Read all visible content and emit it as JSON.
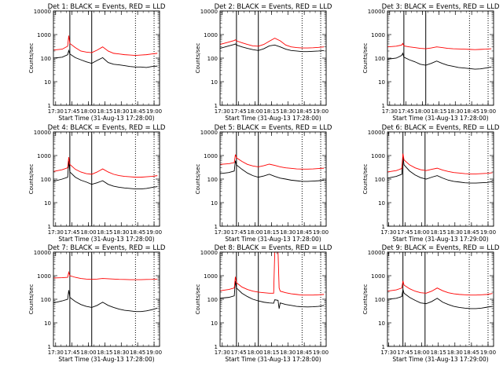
{
  "figure": {
    "background": "#ffffff",
    "event_color": "#000000",
    "lld_color": "#ff0000"
  },
  "chart_data": [
    {
      "type": "line",
      "title": "Det 1: BLACK = Events, RED = LLD",
      "xlabel": "Start Time (31-Aug-13 17:28:00)",
      "ylabel": "Counts/sec",
      "x_ticks": [
        "17:30",
        "17:45",
        "18:00",
        "18:15",
        "18:30",
        "18:45",
        "19:00"
      ],
      "y_ticks": [
        "1",
        "10",
        "100",
        "1000",
        "10000"
      ],
      "yscale": "log",
      "ylim": [
        1,
        10000
      ],
      "xlim": [
        "17:28",
        "19:05"
      ],
      "x_minutes": [
        0,
        8,
        13,
        14,
        15,
        20,
        25,
        30,
        35,
        40,
        45,
        50,
        55,
        60,
        65,
        70,
        75,
        80,
        85,
        90,
        95
      ],
      "series": [
        {
          "name": "Events",
          "color": "#000000",
          "values": [
            100,
            110,
            140,
            210,
            150,
            105,
            85,
            70,
            60,
            80,
            105,
            65,
            55,
            52,
            48,
            44,
            42,
            42,
            40,
            44,
            46
          ]
        },
        {
          "name": "LLD",
          "color": "#ff0000",
          "values": [
            220,
            240,
            320,
            900,
            420,
            280,
            200,
            180,
            170,
            220,
            300,
            200,
            160,
            150,
            140,
            135,
            130,
            135,
            140,
            150,
            160
          ]
        }
      ],
      "vertical_solid_min": [
        15,
        35
      ],
      "vertical_dotted_min": [
        75,
        92
      ]
    },
    {
      "type": "line",
      "title": "Det 2: BLACK = Events, RED = LLD",
      "xlabel": "Start Time (31-Aug-13 17:28:00)",
      "ylabel": "Counts/sec",
      "x_ticks": [
        "17:30",
        "17:45",
        "18:00",
        "18:15",
        "18:30",
        "18:45",
        "19:00"
      ],
      "y_ticks": [
        "1",
        "10",
        "100",
        "1000",
        "10000"
      ],
      "yscale": "log",
      "ylim": [
        1,
        10000
      ],
      "xlim": [
        "17:28",
        "19:05"
      ],
      "x_minutes": [
        0,
        8,
        13,
        14,
        15,
        20,
        25,
        30,
        35,
        40,
        45,
        50,
        55,
        60,
        65,
        70,
        75,
        80,
        85,
        90,
        95
      ],
      "series": [
        {
          "name": "Events",
          "color": "#000000",
          "values": [
            260,
            330,
            380,
            400,
            360,
            300,
            260,
            230,
            210,
            250,
            330,
            360,
            300,
            240,
            210,
            200,
            190,
            190,
            195,
            200,
            210
          ]
        },
        {
          "name": "LLD",
          "color": "#ff0000",
          "values": [
            380,
            480,
            560,
            600,
            540,
            450,
            380,
            330,
            320,
            380,
            520,
            700,
            540,
            360,
            300,
            280,
            270,
            270,
            275,
            285,
            300
          ]
        }
      ],
      "vertical_solid_min": [
        15,
        35
      ],
      "vertical_dotted_min": [
        75,
        92
      ]
    },
    {
      "type": "line",
      "title": "Det 3: BLACK = Events, RED = LLD",
      "xlabel": "Start Time (31-Aug-13 17:28:00)",
      "ylabel": "Counts/sec",
      "x_ticks": [
        "17:30",
        "17:45",
        "18:00",
        "18:15",
        "18:30",
        "18:45",
        "19:00"
      ],
      "y_ticks": [
        "1",
        "10",
        "100",
        "1000",
        "10000"
      ],
      "yscale": "log",
      "ylim": [
        1,
        10000
      ],
      "xlim": [
        "17:28",
        "19:05"
      ],
      "x_minutes": [
        0,
        8,
        13,
        14,
        15,
        20,
        25,
        30,
        35,
        40,
        45,
        50,
        55,
        60,
        65,
        70,
        75,
        80,
        85,
        90,
        95
      ],
      "series": [
        {
          "name": "Events",
          "color": "#000000",
          "values": [
            90,
            100,
            130,
            160,
            110,
            85,
            70,
            55,
            50,
            60,
            75,
            60,
            50,
            45,
            40,
            38,
            36,
            34,
            35,
            38,
            42
          ]
        },
        {
          "name": "LLD",
          "color": "#ff0000",
          "values": [
            300,
            320,
            360,
            420,
            330,
            300,
            280,
            260,
            250,
            270,
            300,
            280,
            260,
            250,
            245,
            240,
            235,
            230,
            235,
            240,
            250
          ]
        }
      ],
      "vertical_solid_min": [
        15,
        35
      ],
      "vertical_dotted_min": [
        75,
        92
      ]
    },
    {
      "type": "line",
      "title": "Det 4: BLACK = Events, RED = LLD",
      "xlabel": "Start Time (31-Aug-13 17:28:00)",
      "ylabel": "Counts/sec",
      "x_ticks": [
        "17:30",
        "17:45",
        "18:00",
        "18:15",
        "18:30",
        "18:45",
        "19:00"
      ],
      "y_ticks": [
        "1",
        "10",
        "100",
        "1000",
        "10000"
      ],
      "yscale": "log",
      "ylim": [
        1,
        10000
      ],
      "xlim": [
        "17:28",
        "19:05"
      ],
      "x_minutes": [
        0,
        8,
        13,
        14,
        15,
        20,
        25,
        30,
        35,
        40,
        45,
        50,
        55,
        60,
        65,
        70,
        75,
        80,
        85,
        90,
        95
      ],
      "series": [
        {
          "name": "Events",
          "color": "#000000",
          "values": [
            80,
            100,
            120,
            600,
            200,
            120,
            90,
            75,
            60,
            70,
            85,
            60,
            50,
            45,
            42,
            40,
            38,
            38,
            40,
            44,
            48
          ]
        },
        {
          "name": "LLD",
          "color": "#ff0000",
          "values": [
            210,
            250,
            300,
            850,
            420,
            260,
            200,
            170,
            160,
            200,
            270,
            200,
            160,
            140,
            130,
            125,
            120,
            120,
            125,
            130,
            140
          ]
        }
      ],
      "vertical_solid_min": [
        15,
        35
      ],
      "vertical_dotted_min": [
        75,
        92
      ]
    },
    {
      "type": "line",
      "title": "Det 5: BLACK = Events, RED = LLD",
      "xlabel": "Start Time (31-Aug-13 17:28:00)",
      "ylabel": "Counts/sec",
      "x_ticks": [
        "17:30",
        "17:45",
        "18:00",
        "18:15",
        "18:30",
        "18:45",
        "19:00"
      ],
      "y_ticks": [
        "1",
        "10",
        "100",
        "1000",
        "10000"
      ],
      "yscale": "log",
      "ylim": [
        1,
        10000
      ],
      "xlim": [
        "17:28",
        "19:05"
      ],
      "x_minutes": [
        0,
        8,
        13,
        14,
        15,
        20,
        25,
        30,
        35,
        40,
        45,
        50,
        55,
        60,
        65,
        70,
        75,
        80,
        85,
        90,
        95
      ],
      "series": [
        {
          "name": "Events",
          "color": "#000000",
          "values": [
            170,
            190,
            220,
            600,
            400,
            260,
            180,
            140,
            120,
            135,
            160,
            130,
            110,
            100,
            90,
            85,
            80,
            80,
            82,
            85,
            90
          ]
        },
        {
          "name": "LLD",
          "color": "#ff0000",
          "values": [
            420,
            450,
            500,
            1100,
            800,
            560,
            420,
            360,
            330,
            370,
            430,
            380,
            330,
            300,
            285,
            270,
            265,
            265,
            270,
            280,
            290
          ]
        }
      ],
      "vertical_solid_min": [
        15,
        35
      ],
      "vertical_dotted_min": [
        75,
        92
      ]
    },
    {
      "type": "line",
      "title": "Det 6: BLACK = Events, RED = LLD",
      "xlabel": "Start Time (31-Aug-13 17:29:00)",
      "ylabel": "Counts/sec",
      "x_ticks": [
        "17:30",
        "17:45",
        "18:00",
        "18:15",
        "18:30",
        "18:45",
        "19:00"
      ],
      "y_ticks": [
        "1",
        "10",
        "100",
        "1000",
        "10000"
      ],
      "yscale": "log",
      "ylim": [
        1,
        10000
      ],
      "xlim": [
        "17:29",
        "19:05"
      ],
      "x_minutes": [
        0,
        8,
        13,
        14,
        15,
        20,
        25,
        30,
        35,
        40,
        45,
        50,
        55,
        60,
        65,
        70,
        75,
        80,
        85,
        90,
        95
      ],
      "series": [
        {
          "name": "Events",
          "color": "#000000",
          "values": [
            110,
            130,
            160,
            900,
            400,
            220,
            150,
            115,
            100,
            120,
            140,
            110,
            90,
            80,
            75,
            70,
            68,
            68,
            70,
            72,
            78
          ]
        },
        {
          "name": "LLD",
          "color": "#ff0000",
          "values": [
            200,
            230,
            280,
            1200,
            650,
            400,
            300,
            250,
            230,
            260,
            290,
            240,
            210,
            190,
            180,
            170,
            165,
            165,
            170,
            175,
            185
          ]
        }
      ],
      "vertical_solid_min": [
        14,
        34
      ],
      "vertical_dotted_min": [
        74,
        91
      ]
    },
    {
      "type": "line",
      "title": "Det 7: BLACK = Events, RED = LLD",
      "xlabel": "Start Time (31-Aug-13 17:28:00)",
      "ylabel": "Counts/sec",
      "x_ticks": [
        "17:30",
        "17:45",
        "18:00",
        "18:15",
        "18:30",
        "18:45",
        "19:00"
      ],
      "y_ticks": [
        "1",
        "10",
        "100",
        "1000",
        "10000"
      ],
      "yscale": "log",
      "ylim": [
        1,
        10000
      ],
      "xlim": [
        "17:28",
        "19:05"
      ],
      "x_minutes": [
        0,
        8,
        13,
        14,
        15,
        20,
        25,
        30,
        35,
        40,
        45,
        50,
        55,
        60,
        65,
        70,
        75,
        80,
        85,
        90,
        95
      ],
      "series": [
        {
          "name": "Events",
          "color": "#000000",
          "values": [
            70,
            85,
            100,
            240,
            120,
            80,
            60,
            50,
            45,
            55,
            75,
            55,
            45,
            38,
            34,
            32,
            30,
            30,
            32,
            36,
            42
          ]
        },
        {
          "name": "LLD",
          "color": "#ff0000",
          "values": [
            800,
            820,
            850,
            1400,
            1000,
            850,
            760,
            720,
            700,
            720,
            760,
            740,
            720,
            700,
            690,
            680,
            680,
            680,
            690,
            700,
            720
          ]
        }
      ],
      "vertical_solid_min": [
        15,
        35
      ],
      "vertical_dotted_min": [
        75,
        92
      ]
    },
    {
      "type": "line",
      "title": "Det 8: BLACK = Events, RED = LLD",
      "xlabel": "Start Time (31-Aug-13 17:28:00)",
      "ylabel": "Counts/sec",
      "x_ticks": [
        "17:30",
        "17:45",
        "18:00",
        "18:15",
        "18:30",
        "18:45",
        "19:00"
      ],
      "y_ticks": [
        "1",
        "10",
        "100",
        "1000",
        "10000"
      ],
      "yscale": "log",
      "ylim": [
        1,
        10000
      ],
      "xlim": [
        "17:28",
        "19:05"
      ],
      "x_minutes": [
        0,
        8,
        13,
        14,
        15,
        20,
        25,
        30,
        35,
        40,
        45,
        49,
        50,
        53,
        54,
        55,
        60,
        65,
        70,
        75,
        80,
        85,
        90,
        95
      ],
      "series": [
        {
          "name": "Events",
          "color": "#000000",
          "values": [
            110,
            120,
            140,
            600,
            300,
            180,
            130,
            100,
            85,
            75,
            70,
            68,
            95,
            90,
            40,
            70,
            60,
            55,
            50,
            48,
            47,
            48,
            50,
            55
          ]
        },
        {
          "name": "LLD",
          "color": "#ff0000",
          "values": [
            230,
            260,
            300,
            900,
            500,
            330,
            260,
            220,
            200,
            190,
            180,
            180,
            10000,
            10000,
            300,
            220,
            190,
            170,
            160,
            150,
            150,
            150,
            155,
            160
          ]
        }
      ],
      "vertical_solid_min": [
        15,
        35
      ],
      "vertical_dotted_min": [
        75,
        92
      ]
    },
    {
      "type": "line",
      "title": "Det 9: BLACK = Events, RED = LLD",
      "xlabel": "Start Time (31-Aug-13 17:29:00)",
      "ylabel": "Counts/sec",
      "x_ticks": [
        "17:30",
        "17:45",
        "18:00",
        "18:15",
        "18:30",
        "18:45",
        "19:00"
      ],
      "y_ticks": [
        "1",
        "10",
        "100",
        "1000",
        "10000"
      ],
      "yscale": "log",
      "ylim": [
        1,
        10000
      ],
      "xlim": [
        "17:29",
        "19:05"
      ],
      "x_minutes": [
        0,
        8,
        13,
        14,
        15,
        20,
        25,
        30,
        35,
        40,
        45,
        50,
        55,
        60,
        65,
        70,
        75,
        80,
        85,
        90,
        95
      ],
      "series": [
        {
          "name": "Events",
          "color": "#000000",
          "values": [
            100,
            110,
            130,
            260,
            180,
            120,
            90,
            70,
            65,
            80,
            110,
            75,
            60,
            50,
            45,
            42,
            40,
            40,
            42,
            46,
            50
          ]
        },
        {
          "name": "LLD",
          "color": "#ff0000",
          "values": [
            220,
            250,
            300,
            600,
            400,
            280,
            220,
            190,
            180,
            220,
            300,
            230,
            190,
            170,
            160,
            155,
            150,
            150,
            155,
            160,
            175
          ]
        }
      ],
      "vertical_solid_min": [
        14,
        34
      ],
      "vertical_dotted_min": [
        74,
        91
      ]
    }
  ]
}
